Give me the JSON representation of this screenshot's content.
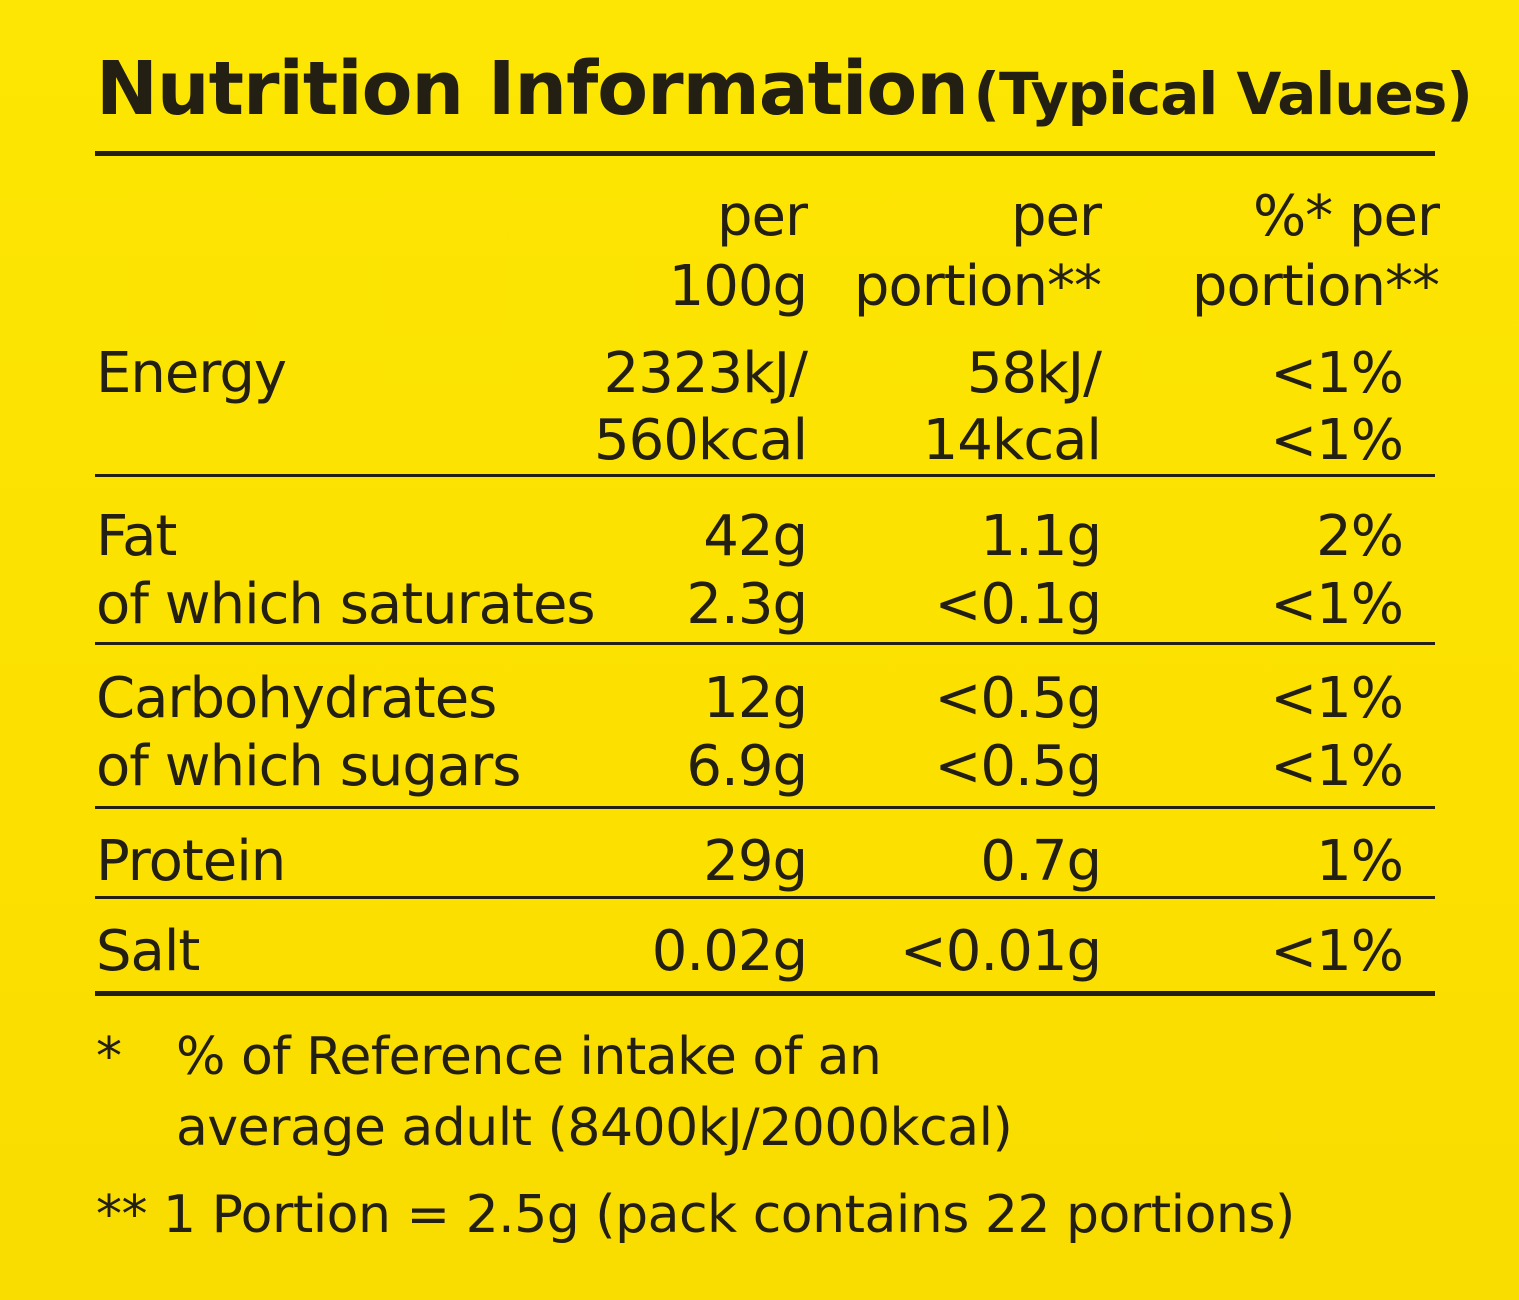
{
  "title": {
    "main": "Nutrition Information",
    "sub": "(Typical Values)"
  },
  "header": {
    "col1": [
      "per",
      "100g"
    ],
    "col2": [
      "per",
      "portion**"
    ],
    "col3": [
      "%* per",
      "portion**"
    ]
  },
  "rows": [
    {
      "label": "Energy",
      "per100g": "2323kJ/",
      "perPortion": "58kJ/",
      "ri": "<1%"
    },
    {
      "label": "",
      "per100g": "560kcal",
      "perPortion": "14kcal",
      "ri": "<1%"
    },
    {
      "label": "Fat",
      "per100g": "42g",
      "perPortion": "1.1g",
      "ri": "2%"
    },
    {
      "label": "of which saturates",
      "per100g": "2.3g",
      "perPortion": "<0.1g",
      "ri": "<1%"
    },
    {
      "label": "Carbohydrates",
      "per100g": "12g",
      "perPortion": "<0.5g",
      "ri": "<1%"
    },
    {
      "label": "of which sugars",
      "per100g": "6.9g",
      "perPortion": "<0.5g",
      "ri": "<1%"
    },
    {
      "label": "Protein",
      "per100g": "29g",
      "perPortion": "0.7g",
      "ri": "1%"
    },
    {
      "label": "Salt",
      "per100g": "0.02g",
      "perPortion": "<0.01g",
      "ri": "<1%"
    }
  ],
  "footnotes": {
    "star_mark": "*",
    "star_line1": "% of Reference intake of an",
    "star_line2": "average adult (8400kJ/2000kcal)",
    "portion_note": "** 1 Portion = 2.5g (pack contains 22 portions)"
  },
  "colors": {
    "background": "#fde400",
    "ink": "#231f12"
  }
}
